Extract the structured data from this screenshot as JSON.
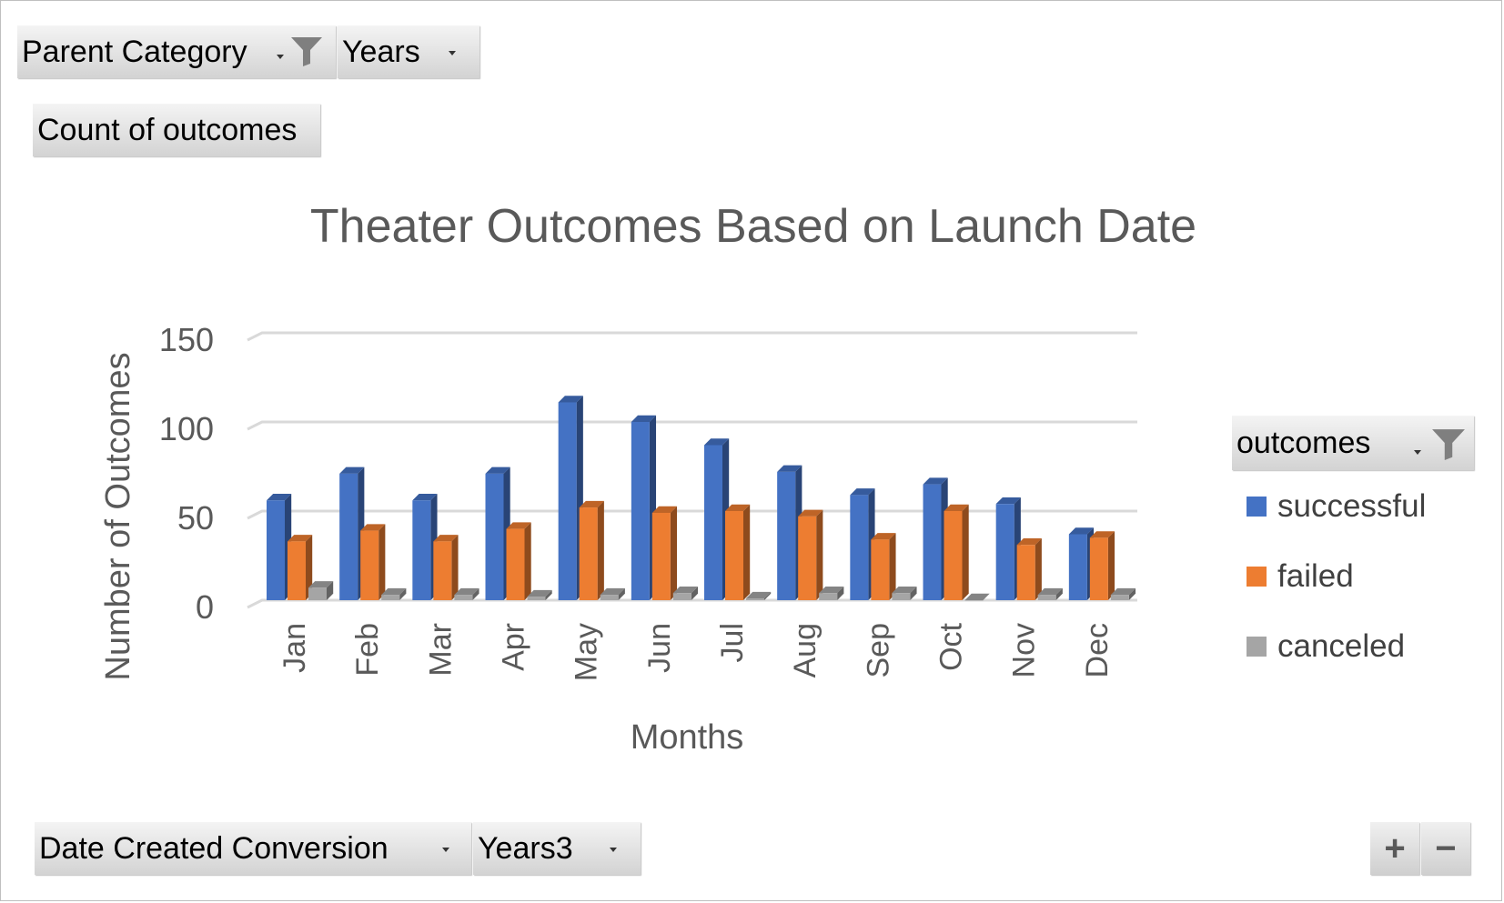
{
  "filters": {
    "parent_category": "Parent Category",
    "years": "Years",
    "values_field": "Count of outcomes",
    "legend_field": "outcomes",
    "date_created": "Date Created Conversion",
    "years3": "Years3"
  },
  "zoom": {
    "plus": "+",
    "minus": "−"
  },
  "colors": {
    "successful": "#4472c4",
    "failed": "#ed7d31",
    "canceled": "#a5a5a5",
    "grid": "#d9d9d9",
    "text": "#595959"
  },
  "chart_data": {
    "type": "bar",
    "title": "Theater Outcomes Based on Launch Date",
    "xlabel": "Months",
    "ylabel": "Number of Outcomes",
    "ylim": [
      0,
      150
    ],
    "yticks": [
      0,
      50,
      100,
      150
    ],
    "grid": true,
    "legend_position": "right",
    "categories": [
      "Jan",
      "Feb",
      "Mar",
      "Apr",
      "May",
      "Jun",
      "Jul",
      "Aug",
      "Sep",
      "Oct",
      "Nov",
      "Dec"
    ],
    "series": [
      {
        "name": "successful",
        "values": [
          56,
          71,
          56,
          71,
          111,
          100,
          87,
          72,
          59,
          65,
          54,
          37
        ]
      },
      {
        "name": "failed",
        "values": [
          33,
          39,
          33,
          40,
          52,
          49,
          50,
          47,
          34,
          50,
          31,
          35
        ]
      },
      {
        "name": "canceled",
        "values": [
          7,
          3,
          3,
          2,
          3,
          4,
          1,
          4,
          4,
          0,
          3,
          3
        ]
      }
    ]
  }
}
